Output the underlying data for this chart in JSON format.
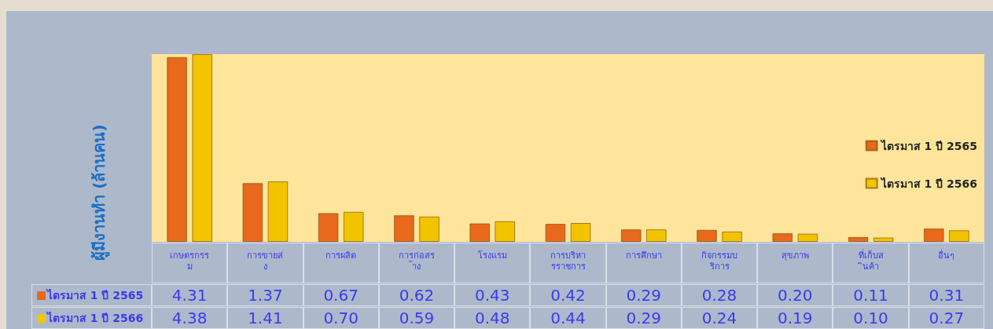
{
  "chart_data": {
    "type": "bar",
    "ylabel": "ผู้มีงานทำ (ล้านคน)",
    "categories": [
      "เกษตรกรรม",
      "การขายส่ง",
      "การผลิต",
      "การก่อสร้าง",
      "โรงแรม",
      "การบริหารราชการ",
      "การศึกษา",
      "กิจกรรมบริการ",
      "สุขภาพ",
      "ที่เก็บสินค้า",
      "อื่นๆ"
    ],
    "series": [
      {
        "name": "ไตรมาส 1 ปี 2565",
        "color": "#e8691c",
        "values": [
          4.31,
          1.37,
          0.67,
          0.62,
          0.43,
          0.42,
          0.29,
          0.28,
          0.2,
          0.11,
          0.31
        ],
        "value_labels": [
          "4.31",
          "1.37",
          "0.67",
          "0.62",
          "0.43",
          "0.42",
          "0.29",
          "0.28",
          "0.20",
          "0.11",
          "0.31"
        ]
      },
      {
        "name": "ไตรมาส 1 ปี 2566",
        "color": "#f2c400",
        "values": [
          4.38,
          1.41,
          0.7,
          0.59,
          0.48,
          0.44,
          0.29,
          0.24,
          0.19,
          0.1,
          0.27
        ],
        "value_labels": [
          "4.38",
          "1.41",
          "0.70",
          "0.59",
          "0.48",
          "0.44",
          "0.29",
          "0.24",
          "0.19",
          "0.10",
          "0.27"
        ]
      }
    ],
    "legend": "right"
  }
}
